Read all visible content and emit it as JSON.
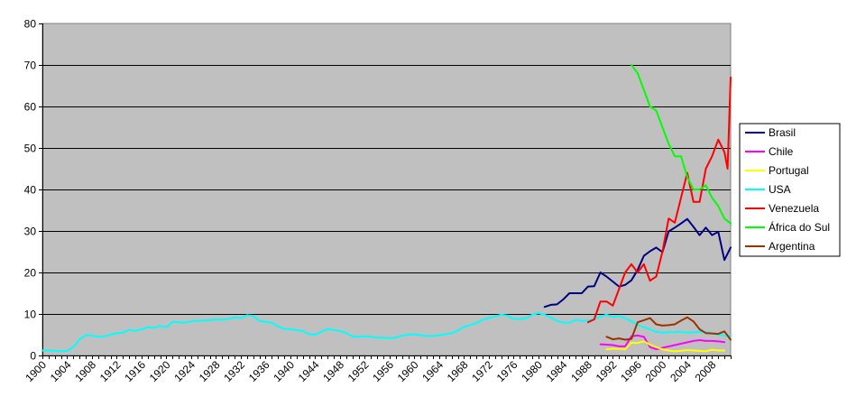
{
  "chart_data": {
    "type": "line",
    "title": "",
    "xlabel": "",
    "ylabel": "",
    "xlim": [
      1900,
      2011
    ],
    "ylim": [
      0,
      80
    ],
    "yticks": [
      0,
      10,
      20,
      30,
      40,
      50,
      60,
      70,
      80
    ],
    "xticks": [
      1900,
      1904,
      1908,
      1912,
      1916,
      1920,
      1924,
      1928,
      1932,
      1936,
      1940,
      1944,
      1948,
      1952,
      1956,
      1960,
      1964,
      1968,
      1972,
      1976,
      1980,
      1984,
      1988,
      1992,
      1996,
      2000,
      2004,
      2008
    ],
    "grid": "horizontal",
    "plot_background": "#c0c0c0",
    "legend_position": "right",
    "series": [
      {
        "name": "Brasil",
        "color": "#000080",
        "points": [
          [
            1981,
            11.7
          ],
          [
            1982,
            12.2
          ],
          [
            1983,
            12.3
          ],
          [
            1984,
            13.5
          ],
          [
            1985,
            15.0
          ],
          [
            1986,
            15.0
          ],
          [
            1987,
            15.0
          ],
          [
            1988,
            16.6
          ],
          [
            1989,
            16.7
          ],
          [
            1990,
            20.0
          ],
          [
            1991,
            19.0
          ],
          [
            1992,
            17.8
          ],
          [
            1993,
            16.6
          ],
          [
            1994,
            17.0
          ],
          [
            1995,
            18.1
          ],
          [
            1996,
            20.6
          ],
          [
            1997,
            24.0
          ],
          [
            1998,
            25.1
          ],
          [
            1999,
            26.0
          ],
          [
            2000,
            24.9
          ],
          [
            2001,
            29.9
          ],
          [
            2002,
            30.8
          ],
          [
            2003,
            31.8
          ],
          [
            2004,
            32.9
          ],
          [
            2005,
            31.0
          ],
          [
            2006,
            29.0
          ],
          [
            2007,
            30.8
          ],
          [
            2008,
            29.0
          ],
          [
            2009,
            29.8
          ],
          [
            2010,
            23.0
          ],
          [
            2011,
            26.0
          ]
        ]
      },
      {
        "name": "Chile",
        "color": "#ff00ff",
        "points": [
          [
            1990,
            2.7
          ],
          [
            1991,
            2.6
          ],
          [
            1992,
            2.5
          ],
          [
            1993,
            2.2
          ],
          [
            1994,
            2.2
          ],
          [
            1995,
            4.6
          ],
          [
            1996,
            4.8
          ],
          [
            1997,
            4.5
          ],
          [
            1998,
            2.0
          ],
          [
            1999,
            1.5
          ],
          [
            2005,
            3.5
          ],
          [
            2006,
            3.7
          ],
          [
            2007,
            3.5
          ],
          [
            2008,
            3.5
          ],
          [
            2009,
            3.4
          ],
          [
            2010,
            3.2
          ]
        ]
      },
      {
        "name": "Portugal",
        "color": "#ffff00",
        "points": [
          [
            1991,
            1.5
          ],
          [
            1992,
            1.6
          ],
          [
            1993,
            1.6
          ],
          [
            1994,
            1.5
          ],
          [
            1995,
            3.1
          ],
          [
            1996,
            3.0
          ],
          [
            1997,
            3.4
          ],
          [
            1998,
            2.6
          ],
          [
            1999,
            2.0
          ],
          [
            2000,
            1.5
          ],
          [
            2001,
            1.2
          ],
          [
            2002,
            1.0
          ],
          [
            2003,
            1.1
          ],
          [
            2004,
            1.3
          ],
          [
            2005,
            1.2
          ],
          [
            2006,
            1.1
          ],
          [
            2007,
            1.0
          ],
          [
            2008,
            1.4
          ],
          [
            2009,
            1.2
          ],
          [
            2010,
            1.2
          ]
        ]
      },
      {
        "name": "USA",
        "color": "#00ffff",
        "points": [
          [
            1900,
            1.2
          ],
          [
            1901,
            1.2
          ],
          [
            1902,
            1.1
          ],
          [
            1903,
            1.0
          ],
          [
            1904,
            1.1
          ],
          [
            1905,
            2.0
          ],
          [
            1906,
            3.9
          ],
          [
            1907,
            4.9
          ],
          [
            1908,
            4.8
          ],
          [
            1909,
            4.5
          ],
          [
            1910,
            4.6
          ],
          [
            1911,
            5.0
          ],
          [
            1912,
            5.4
          ],
          [
            1913,
            5.5
          ],
          [
            1914,
            6.2
          ],
          [
            1915,
            5.9
          ],
          [
            1916,
            6.3
          ],
          [
            1917,
            6.8
          ],
          [
            1918,
            6.7
          ],
          [
            1919,
            7.1
          ],
          [
            1920,
            6.8
          ],
          [
            1921,
            8.1
          ],
          [
            1922,
            8.0
          ],
          [
            1923,
            7.9
          ],
          [
            1924,
            8.2
          ],
          [
            1925,
            8.3
          ],
          [
            1926,
            8.4
          ],
          [
            1927,
            8.5
          ],
          [
            1928,
            8.7
          ],
          [
            1929,
            8.6
          ],
          [
            1930,
            8.8
          ],
          [
            1931,
            9.2
          ],
          [
            1932,
            9.0
          ],
          [
            1933,
            9.7
          ],
          [
            1934,
            9.5
          ],
          [
            1935,
            8.3
          ],
          [
            1936,
            8.1
          ],
          [
            1937,
            7.9
          ],
          [
            1938,
            7.0
          ],
          [
            1939,
            6.4
          ],
          [
            1940,
            6.3
          ],
          [
            1941,
            6.1
          ],
          [
            1942,
            5.9
          ],
          [
            1943,
            5.1
          ],
          [
            1944,
            5.0
          ],
          [
            1945,
            5.7
          ],
          [
            1946,
            6.4
          ],
          [
            1947,
            6.1
          ],
          [
            1948,
            5.9
          ],
          [
            1949,
            5.4
          ],
          [
            1950,
            4.6
          ],
          [
            1951,
            4.5
          ],
          [
            1952,
            4.6
          ],
          [
            1953,
            4.5
          ],
          [
            1954,
            4.3
          ],
          [
            1955,
            4.3
          ],
          [
            1956,
            4.2
          ],
          [
            1957,
            4.3
          ],
          [
            1958,
            4.8
          ],
          [
            1959,
            5.0
          ],
          [
            1960,
            5.1
          ],
          [
            1961,
            4.9
          ],
          [
            1962,
            4.7
          ],
          [
            1963,
            4.7
          ],
          [
            1964,
            4.9
          ],
          [
            1965,
            5.1
          ],
          [
            1966,
            5.4
          ],
          [
            1967,
            6.0
          ],
          [
            1968,
            6.9
          ],
          [
            1969,
            7.3
          ],
          [
            1970,
            7.8
          ],
          [
            1971,
            8.6
          ],
          [
            1972,
            9.0
          ],
          [
            1973,
            9.4
          ],
          [
            1974,
            9.8
          ],
          [
            1975,
            9.6
          ],
          [
            1976,
            8.8
          ],
          [
            1977,
            8.8
          ],
          [
            1978,
            9.0
          ],
          [
            1979,
            9.8
          ],
          [
            1980,
            10.2
          ],
          [
            1981,
            9.8
          ],
          [
            1982,
            9.1
          ],
          [
            1983,
            8.3
          ],
          [
            1984,
            7.9
          ],
          [
            1985,
            7.9
          ],
          [
            1986,
            8.6
          ],
          [
            1987,
            8.3
          ],
          [
            1988,
            8.4
          ],
          [
            1989,
            8.7
          ],
          [
            1990,
            9.4
          ],
          [
            1991,
            9.8
          ],
          [
            1992,
            9.3
          ],
          [
            1993,
            9.5
          ],
          [
            1994,
            9.0
          ],
          [
            1995,
            8.2
          ],
          [
            1996,
            7.4
          ],
          [
            1997,
            6.8
          ],
          [
            1998,
            6.3
          ],
          [
            1999,
            5.7
          ],
          [
            2000,
            5.5
          ],
          [
            2001,
            5.6
          ],
          [
            2002,
            5.6
          ],
          [
            2003,
            5.7
          ],
          [
            2004,
            5.5
          ],
          [
            2005,
            5.6
          ],
          [
            2006,
            5.7
          ],
          [
            2007,
            5.6
          ],
          [
            2008,
            5.4
          ],
          [
            2009,
            5.0
          ],
          [
            2010,
            4.8
          ],
          [
            2011,
            4.7
          ]
        ]
      },
      {
        "name": "Venezuela",
        "color": "#ff0000",
        "points": [
          [
            1988,
            8.0
          ],
          [
            1989,
            8.7
          ],
          [
            1990,
            13.0
          ],
          [
            1991,
            13.0
          ],
          [
            1992,
            12.0
          ],
          [
            1993,
            16.0
          ],
          [
            1994,
            20.0
          ],
          [
            1995,
            22.0
          ],
          [
            1996,
            20.0
          ],
          [
            1997,
            22.0
          ],
          [
            1998,
            18.0
          ],
          [
            1999,
            19.0
          ],
          [
            2000,
            25.0
          ],
          [
            2001,
            33.0
          ],
          [
            2002,
            32.0
          ],
          [
            2003,
            38.0
          ],
          [
            2004,
            44.0
          ],
          [
            2005,
            37.0
          ],
          [
            2006,
            37.0
          ],
          [
            2007,
            45.0
          ],
          [
            2008,
            48.0
          ],
          [
            2009,
            52.0
          ],
          [
            2010,
            49.0
          ],
          [
            2010.5,
            45.0
          ],
          [
            2011,
            67.0
          ]
        ]
      },
      {
        "name": "África do Sul",
        "color": "#00ff00",
        "points": [
          [
            1995,
            70.0
          ],
          [
            1996,
            68.0
          ],
          [
            1997,
            64.0
          ],
          [
            1998,
            60.0
          ],
          [
            1999,
            59.0
          ],
          [
            2000,
            55.0
          ],
          [
            2001,
            51.0
          ],
          [
            2002,
            48.0
          ],
          [
            2003,
            48.0
          ],
          [
            2004,
            43.0
          ],
          [
            2005,
            40.0
          ],
          [
            2006,
            40.0
          ],
          [
            2007,
            41.0
          ],
          [
            2008,
            38.0
          ],
          [
            2009,
            36.0
          ],
          [
            2010,
            33.0
          ],
          [
            2011,
            31.8
          ]
        ]
      },
      {
        "name": "Argentina",
        "color": "#993300",
        "points": [
          [
            1991,
            4.5
          ],
          [
            1992,
            3.9
          ],
          [
            1993,
            4.1
          ],
          [
            1994,
            3.8
          ],
          [
            1995,
            4.0
          ],
          [
            1996,
            8.0
          ],
          [
            1997,
            8.5
          ],
          [
            1998,
            9.0
          ],
          [
            1999,
            7.5
          ],
          [
            2000,
            7.2
          ],
          [
            2001,
            7.3
          ],
          [
            2002,
            7.5
          ],
          [
            2003,
            8.4
          ],
          [
            2004,
            9.2
          ],
          [
            2005,
            8.2
          ],
          [
            2006,
            6.3
          ],
          [
            2007,
            5.4
          ],
          [
            2008,
            5.3
          ],
          [
            2009,
            5.2
          ],
          [
            2010,
            5.8
          ],
          [
            2011,
            3.8
          ]
        ]
      }
    ]
  }
}
